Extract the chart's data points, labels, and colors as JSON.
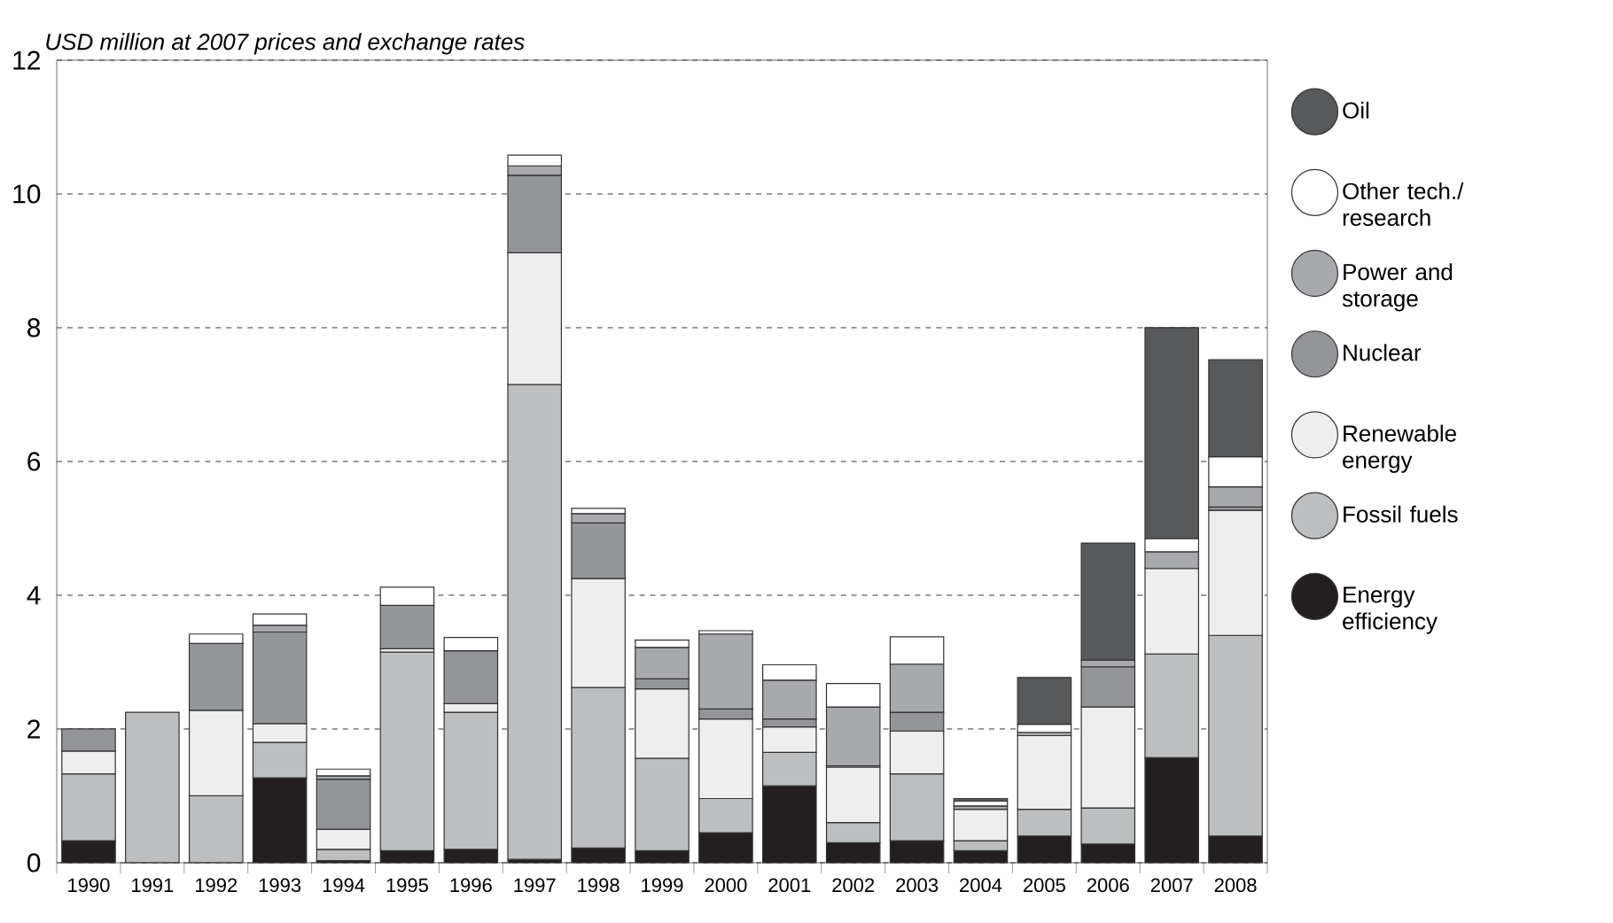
{
  "chart_data": {
    "type": "bar",
    "stacked": true,
    "ylabel": "USD million at 2007 prices and exchange rates",
    "categories": [
      "1990",
      "1991",
      "1992",
      "1993",
      "1994",
      "1995",
      "1996",
      "1997",
      "1998",
      "1999",
      "2000",
      "2001",
      "2002",
      "2003",
      "2004",
      "2005",
      "2006",
      "2007",
      "2008"
    ],
    "series": [
      {
        "name": "Energy efficiency",
        "color": "#231f20",
        "values": [
          0.33,
          null,
          null,
          1.27,
          0.03,
          0.18,
          0.2,
          0.05,
          0.22,
          0.18,
          0.45,
          1.15,
          0.3,
          0.33,
          0.18,
          0.4,
          0.28,
          1.57,
          0.4
        ]
      },
      {
        "name": "Fossil fuels",
        "color": "#bcbec0",
        "values": [
          1.0,
          2.25,
          1.0,
          0.53,
          0.17,
          2.97,
          2.05,
          7.1,
          2.4,
          1.38,
          0.51,
          0.5,
          0.3,
          1.0,
          0.15,
          0.4,
          0.54,
          1.55,
          3.0
        ]
      },
      {
        "name": "Renewable energy",
        "color": "#eeeeee",
        "values": [
          0.34,
          null,
          1.28,
          0.28,
          0.3,
          0.05,
          0.13,
          1.97,
          1.63,
          1.04,
          1.19,
          0.38,
          0.83,
          0.64,
          0.47,
          1.1,
          1.51,
          1.28,
          1.87
        ]
      },
      {
        "name": "Nuclear",
        "color": "#939598",
        "values": [
          0.33,
          null,
          1.0,
          1.37,
          0.75,
          0.65,
          0.79,
          1.16,
          0.83,
          0.15,
          0.15,
          0.12,
          0.02,
          0.28,
          null,
          null,
          0.6,
          null,
          0.05
        ]
      },
      {
        "name": "Power and storage",
        "color": "#a7a9ac",
        "values": [
          null,
          null,
          null,
          0.1,
          0.05,
          null,
          null,
          0.14,
          0.14,
          0.47,
          1.12,
          0.58,
          0.88,
          0.72,
          0.05,
          0.05,
          0.1,
          0.25,
          0.3
        ]
      },
      {
        "name": "Other tech./ research",
        "color": "#ffffff",
        "values": [
          null,
          null,
          0.14,
          0.17,
          0.1,
          0.27,
          0.2,
          0.16,
          0.08,
          0.11,
          0.05,
          0.23,
          0.35,
          0.41,
          0.07,
          0.12,
          null,
          0.2,
          0.45
        ]
      },
      {
        "name": "Oil",
        "color": "#58595b",
        "values": [
          null,
          null,
          null,
          null,
          null,
          null,
          null,
          null,
          null,
          null,
          null,
          null,
          null,
          null,
          0.04,
          0.7,
          1.75,
          3.15,
          1.45
        ]
      }
    ],
    "ylim": [
      0,
      12
    ],
    "yticks": [
      0,
      2,
      4,
      6,
      8,
      10,
      12
    ],
    "grid": "y",
    "legend": "right"
  }
}
